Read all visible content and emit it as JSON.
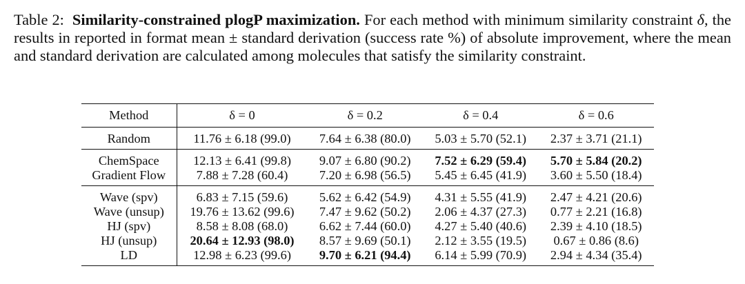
{
  "caption": {
    "label": "Table 2:",
    "title": "Similarity-constrained plogP maximization.",
    "body_a": "For each method with minimum similarity constraint",
    "delta_symbol": "δ",
    "body_b": ", the results in reported in format mean ± standard derivation (success rate %) of absolute improvement, where the mean and standard derivation are calculated among molecules that satisfy the similarity constraint."
  },
  "table": {
    "headers": [
      "Method",
      "δ = 0",
      "δ = 0.2",
      "δ = 0.4",
      "δ = 0.6"
    ],
    "groups": [
      {
        "rows": [
          {
            "method": "Random",
            "cells": [
              "11.76 ± 6.18 (99.0)",
              "7.64 ± 6.38 (80.0)",
              "5.03 ± 5.70 (52.1)",
              "2.37 ± 3.71 (21.1)"
            ],
            "bold": [
              false,
              false,
              false,
              false
            ]
          }
        ]
      },
      {
        "rows": [
          {
            "method": "ChemSpace",
            "cells": [
              "12.13 ± 6.41 (99.8)",
              "9.07 ± 6.80 (90.2)",
              "7.52 ± 6.29 (59.4)",
              "5.70 ± 5.84 (20.2)"
            ],
            "bold": [
              false,
              false,
              true,
              true
            ]
          },
          {
            "method": "Gradient Flow",
            "cells": [
              "7.88 ± 7.28 (60.4)",
              "7.20 ± 6.98 (56.5)",
              "5.45 ± 6.45 (41.9)",
              "3.60 ± 5.50 (18.4)"
            ],
            "bold": [
              false,
              false,
              false,
              false
            ]
          }
        ]
      },
      {
        "rows": [
          {
            "method": "Wave (spv)",
            "cells": [
              "6.83 ± 7.15 (59.6)",
              "5.62 ± 6.42 (54.9)",
              "4.31 ± 5.55 (41.9)",
              "2.47 ± 4.21 (20.6)"
            ],
            "bold": [
              false,
              false,
              false,
              false
            ]
          },
          {
            "method": "Wave (unsup)",
            "cells": [
              "19.76 ± 13.62 (99.6)",
              "7.47 ± 9.62 (50.2)",
              "2.06 ± 4.37 (27.3)",
              "0.77 ± 2.21 (16.8)"
            ],
            "bold": [
              false,
              false,
              false,
              false
            ]
          },
          {
            "method": "HJ (spv)",
            "cells": [
              "8.58 ± 8.08 (68.0)",
              "6.62 ± 7.44 (60.0)",
              "4.27 ± 5.40 (40.6)",
              "2.39 ± 4.10 (18.5)"
            ],
            "bold": [
              false,
              false,
              false,
              false
            ]
          },
          {
            "method": "HJ (unsup)",
            "cells": [
              "20.64 ± 12.93 (98.0)",
              "8.57 ± 9.69 (50.1)",
              "2.12 ± 3.55 (19.5)",
              "0.67 ± 0.86 (8.6)"
            ],
            "bold": [
              true,
              false,
              false,
              false
            ]
          },
          {
            "method": "LD",
            "cells": [
              "12.98 ± 6.23 (99.6)",
              "9.70 ± 6.21 (94.4)",
              "6.14 ± 5.99 (70.9)",
              "2.94 ± 4.34 (35.4)"
            ],
            "bold": [
              false,
              true,
              false,
              false
            ]
          }
        ]
      }
    ]
  }
}
